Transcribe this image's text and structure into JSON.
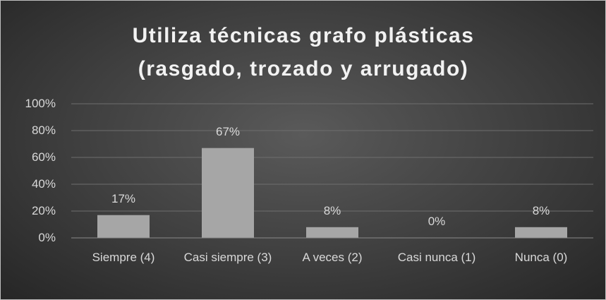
{
  "chart_data": {
    "type": "bar",
    "title": "Utiliza técnicas grafo plásticas (rasgado, trozado y arrugado)",
    "categories": [
      "Siempre (4)",
      "Casi siempre (3)",
      "A veces (2)",
      "Casi nunca (1)",
      "Nunca (0)"
    ],
    "values": [
      17,
      67,
      8,
      0,
      8
    ],
    "value_labels": [
      "17%",
      "67%",
      "8%",
      "0%",
      "8%"
    ],
    "color": "#a6a6a6",
    "ylim": [
      0,
      100
    ],
    "yticks": [
      {
        "value": 0,
        "label": "0%"
      },
      {
        "value": 20,
        "label": "20%"
      },
      {
        "value": 40,
        "label": "40%"
      },
      {
        "value": 60,
        "label": "60%"
      },
      {
        "value": 80,
        "label": "80%"
      },
      {
        "value": 100,
        "label": "100%"
      }
    ],
    "grid": true
  }
}
